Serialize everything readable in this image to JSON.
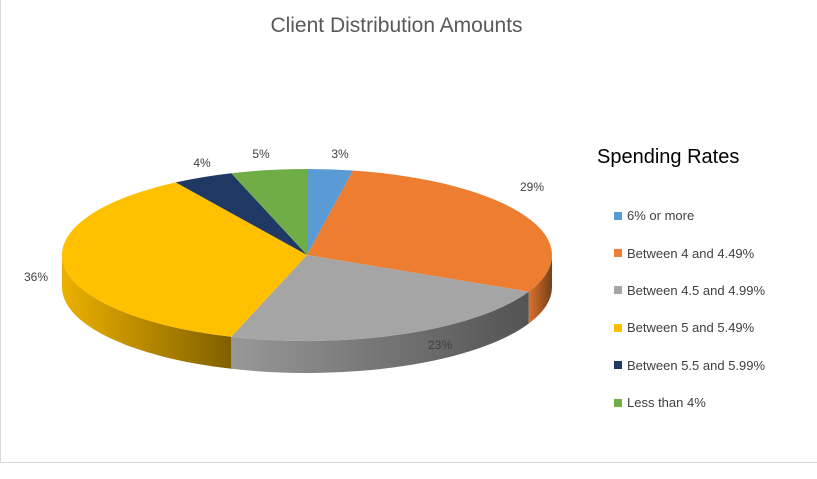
{
  "chart_data": {
    "type": "pie",
    "style": "3d",
    "title": "Client Distribution Amounts",
    "legend_title": "Spending Rates",
    "legend_position": "right",
    "slices": [
      {
        "label": "6% or more",
        "value": 3,
        "value_label": "3%",
        "color": "#5b9bd5"
      },
      {
        "label": "Between 4 and 4.49%",
        "value": 29,
        "value_label": "29%",
        "color": "#ed7d31"
      },
      {
        "label": "Between 4.5 and 4.99%",
        "value": 23,
        "value_label": "23%",
        "color": "#a5a5a5"
      },
      {
        "label": "Between 5 and 5.49%",
        "value": 36,
        "value_label": "36%",
        "color": "#ffc000"
      },
      {
        "label": "Between 5.5 and 5.99%",
        "value": 4,
        "value_label": "4%",
        "color": "#1f3864"
      },
      {
        "label": "Less than 4%",
        "value": 5,
        "value_label": "5%",
        "color": "#70ad47"
      }
    ]
  }
}
